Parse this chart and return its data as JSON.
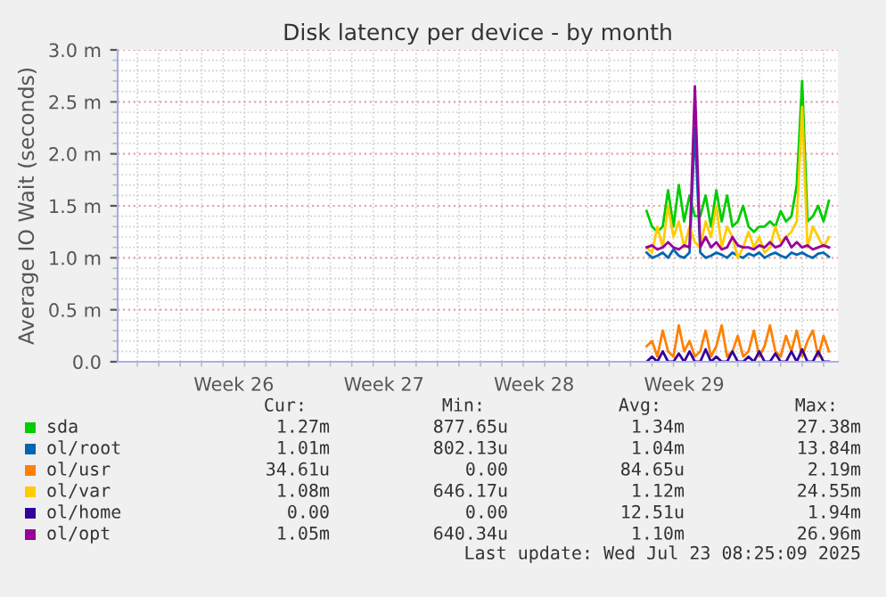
{
  "chart_data": {
    "type": "line",
    "title": "Disk latency per device - by month",
    "ylabel": "Average IO Wait (seconds)",
    "x": [
      "2025-07-15T18:00",
      "2025-07-16T00:00",
      "2025-07-16T06:00",
      "2025-07-16T12:00",
      "2025-07-16T18:00",
      "2025-07-17T00:00",
      "2025-07-17T06:00",
      "2025-07-17T12:00",
      "2025-07-17T18:00",
      "2025-07-18T00:00",
      "2025-07-18T06:00",
      "2025-07-18T12:00",
      "2025-07-18T18:00",
      "2025-07-19T00:00",
      "2025-07-19T06:00",
      "2025-07-19T12:00",
      "2025-07-19T18:00",
      "2025-07-20T00:00",
      "2025-07-20T06:00",
      "2025-07-20T12:00",
      "2025-07-20T18:00",
      "2025-07-21T00:00",
      "2025-07-21T06:00",
      "2025-07-21T12:00",
      "2025-07-21T18:00",
      "2025-07-22T00:00",
      "2025-07-22T06:00",
      "2025-07-22T12:00",
      "2025-07-22T18:00",
      "2025-07-23T00:00",
      "2025-07-23T06:00",
      "2025-07-23T12:00",
      "2025-07-23T18:00",
      "2025-07-24T00:00",
      "2025-07-24T06:00"
    ],
    "series": [
      {
        "name": "sda",
        "color": "#00cc00",
        "values": [
          1.45,
          1.3,
          1.25,
          1.3,
          1.65,
          1.3,
          1.7,
          1.35,
          1.6,
          1.4,
          1.4,
          1.6,
          1.3,
          1.65,
          1.35,
          1.6,
          1.3,
          1.35,
          1.5,
          1.3,
          1.25,
          1.3,
          1.3,
          1.35,
          1.3,
          1.45,
          1.35,
          1.4,
          1.7,
          2.7,
          1.35,
          1.4,
          1.5,
          1.35,
          1.55
        ]
      },
      {
        "name": "ol/root",
        "color": "#0066b3",
        "values": [
          1.05,
          1.0,
          1.02,
          1.05,
          1.0,
          1.08,
          1.02,
          1.0,
          1.05,
          2.25,
          1.05,
          1.0,
          1.02,
          1.05,
          1.03,
          1.0,
          1.05,
          1.02,
          1.0,
          1.04,
          1.02,
          1.05,
          1.0,
          1.03,
          1.05,
          1.02,
          1.0,
          1.05,
          1.03,
          1.05,
          1.02,
          1.0,
          1.04,
          1.05,
          1.01
        ]
      },
      {
        "name": "ol/usr",
        "color": "#ff8000",
        "values": [
          0.15,
          0.2,
          0.05,
          0.3,
          0.1,
          0.05,
          0.35,
          0.1,
          0.2,
          0.05,
          0.1,
          0.3,
          0.05,
          0.15,
          0.35,
          0.05,
          0.1,
          0.25,
          0.05,
          0.1,
          0.3,
          0.05,
          0.15,
          0.35,
          0.1,
          0.05,
          0.25,
          0.1,
          0.3,
          0.05,
          0.2,
          0.3,
          0.05,
          0.25,
          0.1
        ]
      },
      {
        "name": "ol/var",
        "color": "#ffcc00",
        "values": [
          1.1,
          1.05,
          1.3,
          1.1,
          1.5,
          1.2,
          1.35,
          1.1,
          1.3,
          1.15,
          1.1,
          1.35,
          1.2,
          1.5,
          1.1,
          1.3,
          1.2,
          1.0,
          1.1,
          1.25,
          1.1,
          1.2,
          1.05,
          1.1,
          1.3,
          1.15,
          1.2,
          1.25,
          1.35,
          2.45,
          1.1,
          1.3,
          1.2,
          1.1,
          1.2
        ]
      },
      {
        "name": "ol/home",
        "color": "#330099",
        "values": [
          0,
          0.05,
          0,
          0.1,
          0,
          0,
          0.08,
          0,
          0.1,
          0,
          0,
          0.12,
          0,
          0.05,
          0,
          0,
          0.1,
          0,
          0,
          0.05,
          0,
          0.1,
          0,
          0,
          0.08,
          0,
          0,
          0.1,
          0,
          0.12,
          0,
          0,
          0.1,
          0,
          0
        ]
      },
      {
        "name": "ol/opt",
        "color": "#990099",
        "values": [
          1.1,
          1.12,
          1.08,
          1.1,
          1.15,
          1.1,
          1.08,
          1.12,
          1.1,
          2.65,
          1.1,
          1.2,
          1.1,
          1.15,
          1.08,
          1.1,
          1.2,
          1.12,
          1.1,
          1.1,
          1.08,
          1.12,
          1.1,
          1.15,
          1.1,
          1.12,
          1.2,
          1.1,
          1.15,
          1.1,
          1.12,
          1.08,
          1.1,
          1.12,
          1.1
        ]
      }
    ],
    "xlim": [
      "2025-06-21T02:00",
      "2025-07-24T16:00"
    ],
    "xticks": [
      {
        "value": "2025-06-26T12:00",
        "label": "Week 26"
      },
      {
        "value": "2025-07-03T12:00",
        "label": "Week 27"
      },
      {
        "value": "2025-07-10T12:00",
        "label": "Week 28"
      },
      {
        "value": "2025-07-17T12:00",
        "label": "Week 29"
      }
    ],
    "ylim": [
      0,
      3.0
    ],
    "yticks": [
      {
        "value": 0,
        "label": "0.0"
      },
      {
        "value": 0.5,
        "label": "0.5 m"
      },
      {
        "value": 1.0,
        "label": "1.0 m"
      },
      {
        "value": 1.5,
        "label": "1.5 m"
      },
      {
        "value": 2.0,
        "label": "2.0 m"
      },
      {
        "value": 2.5,
        "label": "2.5 m"
      },
      {
        "value": 3.0,
        "label": "3.0 m"
      }
    ],
    "grid": true,
    "legend": "bottom",
    "marker": "none",
    "line_style": "solid",
    "annotations": [
      "Cur:",
      "Min:",
      "Avg:",
      "Max:",
      "1.27m",
      "877.65u",
      "1.34m",
      "27.38m",
      "1.01m",
      "802.13u",
      "1.04m",
      "13.84m",
      "34.61u",
      "0.00",
      "84.65u",
      "2.19m",
      "1.08m",
      "646.17u",
      "1.12m",
      "24.55m",
      "0.00",
      "0.00",
      "12.51u",
      "1.94m",
      "1.05m",
      "640.34u",
      "1.10m",
      "26.96m",
      "Last update: Wed Jul 23 08:25:09 2025"
    ]
  }
}
